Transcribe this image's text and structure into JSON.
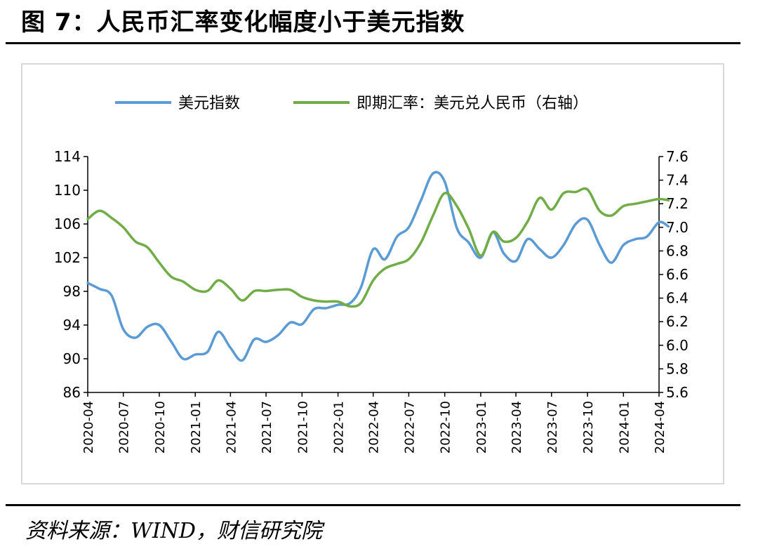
{
  "figure": {
    "title": "图 7：人民币汇率变化幅度小于美元指数",
    "source": "资料来源：WIND，财信研究院"
  },
  "chart_data": {
    "type": "line",
    "legend_position": "top",
    "grid": false,
    "x_tick_labels": [
      "2020-04",
      "2020-07",
      "2020-10",
      "2021-01",
      "2021-04",
      "2021-07",
      "2021-10",
      "2022-01",
      "2022-04",
      "2022-07",
      "2022-10",
      "2023-01",
      "2023-04",
      "2023-07",
      "2023-10",
      "2024-01",
      "2024-04"
    ],
    "y_left": {
      "ticks": [
        "86",
        "90",
        "94",
        "98",
        "102",
        "106",
        "110",
        "114"
      ],
      "range": [
        86,
        114
      ]
    },
    "y_right": {
      "ticks": [
        "5.6",
        "5.8",
        "6.0",
        "6.2",
        "6.4",
        "6.6",
        "6.8",
        "7.0",
        "7.2",
        "7.4",
        "7.6"
      ],
      "range": [
        5.6,
        7.6
      ]
    },
    "series": [
      {
        "name": "美元指数",
        "axis": "left",
        "color": "#5b9bd5",
        "points": [
          [
            "2020-04-01",
            99.0
          ],
          [
            "2020-05-01",
            98.3
          ],
          [
            "2020-06-01",
            97.5
          ],
          [
            "2020-07-01",
            93.5
          ],
          [
            "2020-08-01",
            92.5
          ],
          [
            "2020-09-01",
            93.8
          ],
          [
            "2020-10-01",
            94.0
          ],
          [
            "2020-11-01",
            92.0
          ],
          [
            "2020-12-01",
            90.0
          ],
          [
            "2021-01-01",
            90.5
          ],
          [
            "2021-02-01",
            90.8
          ],
          [
            "2021-03-01",
            93.2
          ],
          [
            "2021-04-01",
            91.3
          ],
          [
            "2021-05-01",
            89.8
          ],
          [
            "2021-06-01",
            92.3
          ],
          [
            "2021-07-01",
            92.0
          ],
          [
            "2021-08-01",
            92.8
          ],
          [
            "2021-09-01",
            94.3
          ],
          [
            "2021-10-01",
            94.1
          ],
          [
            "2021-11-01",
            95.9
          ],
          [
            "2021-12-01",
            96.0
          ],
          [
            "2022-01-01",
            96.4
          ],
          [
            "2022-02-01",
            96.6
          ],
          [
            "2022-03-01",
            98.5
          ],
          [
            "2022-04-01",
            103.0
          ],
          [
            "2022-05-01",
            101.8
          ],
          [
            "2022-06-01",
            104.5
          ],
          [
            "2022-07-01",
            105.6
          ],
          [
            "2022-08-01",
            108.8
          ],
          [
            "2022-09-01",
            112.0
          ],
          [
            "2022-10-01",
            111.0
          ],
          [
            "2022-11-01",
            105.5
          ],
          [
            "2022-12-01",
            103.8
          ],
          [
            "2023-01-01",
            102.0
          ],
          [
            "2023-02-01",
            105.0
          ],
          [
            "2023-03-01",
            102.5
          ],
          [
            "2023-04-01",
            101.6
          ],
          [
            "2023-05-01",
            104.2
          ],
          [
            "2023-06-01",
            103.0
          ],
          [
            "2023-07-01",
            102.0
          ],
          [
            "2023-08-01",
            103.5
          ],
          [
            "2023-09-01",
            106.0
          ],
          [
            "2023-10-01",
            106.5
          ],
          [
            "2023-11-01",
            103.5
          ],
          [
            "2023-12-01",
            101.4
          ],
          [
            "2024-01-01",
            103.5
          ],
          [
            "2024-02-01",
            104.2
          ],
          [
            "2024-03-01",
            104.5
          ],
          [
            "2024-04-01",
            106.2
          ],
          [
            "2024-04-25",
            105.7
          ]
        ]
      },
      {
        "name": "即期汇率：美元兑人民币（右轴）",
        "axis": "right",
        "color": "#70ad47",
        "points": [
          [
            "2020-04-01",
            7.07
          ],
          [
            "2020-05-01",
            7.14
          ],
          [
            "2020-06-01",
            7.08
          ],
          [
            "2020-07-01",
            7.0
          ],
          [
            "2020-08-01",
            6.88
          ],
          [
            "2020-09-01",
            6.83
          ],
          [
            "2020-10-01",
            6.7
          ],
          [
            "2020-11-01",
            6.58
          ],
          [
            "2020-12-01",
            6.54
          ],
          [
            "2021-01-01",
            6.47
          ],
          [
            "2021-02-01",
            6.46
          ],
          [
            "2021-03-01",
            6.55
          ],
          [
            "2021-04-01",
            6.48
          ],
          [
            "2021-05-01",
            6.38
          ],
          [
            "2021-06-01",
            6.46
          ],
          [
            "2021-07-01",
            6.46
          ],
          [
            "2021-08-01",
            6.47
          ],
          [
            "2021-09-01",
            6.47
          ],
          [
            "2021-10-01",
            6.41
          ],
          [
            "2021-11-01",
            6.38
          ],
          [
            "2021-12-01",
            6.37
          ],
          [
            "2022-01-01",
            6.37
          ],
          [
            "2022-02-01",
            6.33
          ],
          [
            "2022-03-01",
            6.36
          ],
          [
            "2022-04-01",
            6.55
          ],
          [
            "2022-05-01",
            6.65
          ],
          [
            "2022-06-01",
            6.69
          ],
          [
            "2022-07-01",
            6.73
          ],
          [
            "2022-08-01",
            6.87
          ],
          [
            "2022-09-01",
            7.1
          ],
          [
            "2022-10-01",
            7.29
          ],
          [
            "2022-11-01",
            7.18
          ],
          [
            "2022-12-01",
            6.99
          ],
          [
            "2023-01-01",
            6.76
          ],
          [
            "2023-02-01",
            6.96
          ],
          [
            "2023-03-01",
            6.88
          ],
          [
            "2023-04-01",
            6.91
          ],
          [
            "2023-05-01",
            7.05
          ],
          [
            "2023-06-01",
            7.25
          ],
          [
            "2023-07-01",
            7.15
          ],
          [
            "2023-08-01",
            7.29
          ],
          [
            "2023-09-01",
            7.3
          ],
          [
            "2023-10-01",
            7.32
          ],
          [
            "2023-11-01",
            7.14
          ],
          [
            "2023-12-01",
            7.1
          ],
          [
            "2024-01-01",
            7.18
          ],
          [
            "2024-02-01",
            7.2
          ],
          [
            "2024-03-01",
            7.22
          ],
          [
            "2024-04-01",
            7.24
          ],
          [
            "2024-04-25",
            7.23
          ]
        ]
      }
    ]
  }
}
